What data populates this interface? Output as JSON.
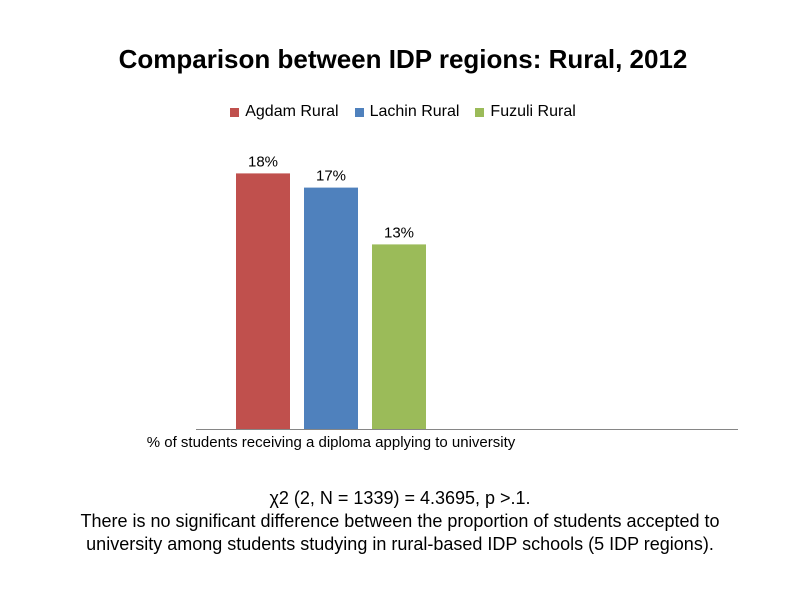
{
  "chart_data": {
    "type": "bar",
    "title": "Comparison between IDP regions: Rural, 2012",
    "categories": [
      "% of students receiving a diploma applying to university"
    ],
    "series": [
      {
        "name": "Agdam Rural",
        "values": [
          18
        ],
        "label": "18%",
        "color": "#c0504d"
      },
      {
        "name": "Lachin Rural",
        "values": [
          17
        ],
        "label": "17%",
        "color": "#4f81bd"
      },
      {
        "name": "Fuzuli Rural",
        "values": [
          13
        ],
        "label": "13%",
        "color": "#9bbb59"
      }
    ],
    "xlabel": "",
    "ylabel": "",
    "ylim": [
      0,
      18
    ],
    "grid": false,
    "legend_position": "top"
  },
  "note": {
    "line1": "χ2 (2, N = 1339) = 4.3695, p >.1.",
    "line2": "There is no significant difference between the proportion of students accepted to university among students studying in rural-based IDP schools (5 IDP regions)."
  }
}
